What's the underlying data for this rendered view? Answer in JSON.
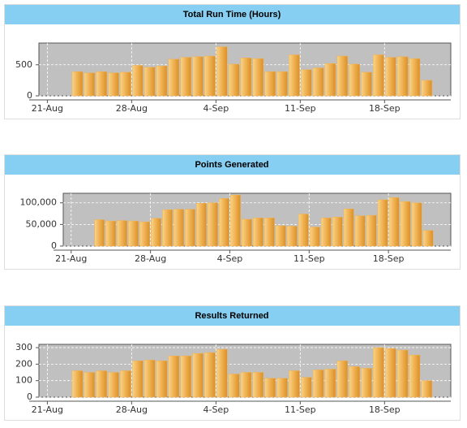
{
  "chart_data": [
    {
      "type": "bar",
      "title": "Total Run Time (Hours)",
      "color": "#f0b050",
      "grid": true,
      "x": [
        2,
        3,
        4,
        5,
        6,
        7,
        8,
        9,
        10,
        11,
        12,
        13,
        14,
        15,
        16,
        17,
        18,
        19,
        20,
        21,
        22,
        23,
        24,
        25,
        26,
        27,
        28,
        29,
        30,
        31
      ],
      "values": [
        390,
        370,
        390,
        370,
        380,
        490,
        460,
        480,
        590,
        620,
        630,
        640,
        790,
        510,
        610,
        600,
        390,
        390,
        660,
        420,
        450,
        520,
        640,
        510,
        380,
        660,
        620,
        630,
        600,
        250
      ],
      "xlim": [
        -0.7,
        33.5
      ],
      "xticks": [
        {
          "value": 0,
          "label": "21-Aug"
        },
        {
          "value": 7,
          "label": "28-Aug"
        },
        {
          "value": 14,
          "label": "4-Sep"
        },
        {
          "value": 21,
          "label": "11-Sep"
        },
        {
          "value": 28,
          "label": "18-Sep"
        }
      ],
      "ylim": [
        0,
        850
      ],
      "yticks": [
        0,
        500
      ]
    },
    {
      "type": "bar",
      "title": "Points Generated",
      "color": "#f0b050",
      "grid": true,
      "x": [
        2,
        3,
        4,
        5,
        6,
        7,
        8,
        9,
        10,
        11,
        12,
        13,
        14,
        15,
        16,
        17,
        18,
        19,
        20,
        21,
        22,
        23,
        24,
        25,
        26,
        27,
        28,
        29,
        30,
        31
      ],
      "values": [
        61000,
        58000,
        59000,
        58000,
        56000,
        64000,
        84000,
        85000,
        85000,
        99000,
        100000,
        110000,
        118000,
        62000,
        65000,
        65000,
        47000,
        46000,
        74000,
        44000,
        65000,
        67000,
        86000,
        70000,
        71000,
        107000,
        112000,
        103000,
        100000,
        36000
      ],
      "xlim": [
        -0.7,
        33.5
      ],
      "xticks": [
        {
          "value": 0,
          "label": "21-Aug"
        },
        {
          "value": 7,
          "label": "28-Aug"
        },
        {
          "value": 14,
          "label": "4-Sep"
        },
        {
          "value": 21,
          "label": "11-Sep"
        },
        {
          "value": 28,
          "label": "18-Sep"
        }
      ],
      "ylim": [
        0,
        122000
      ],
      "yticks": [
        0,
        {
          "value": 50000,
          "label": "50,000"
        },
        {
          "value": 100000,
          "label": "100,000"
        }
      ]
    },
    {
      "type": "bar",
      "title": "Results Returned",
      "color": "#f0b050",
      "grid": true,
      "x": [
        2,
        3,
        4,
        5,
        6,
        7,
        8,
        9,
        10,
        11,
        12,
        13,
        14,
        15,
        16,
        17,
        18,
        19,
        20,
        21,
        22,
        23,
        24,
        25,
        26,
        27,
        28,
        29,
        30,
        31
      ],
      "values": [
        160,
        150,
        160,
        150,
        160,
        220,
        225,
        220,
        250,
        250,
        265,
        270,
        290,
        140,
        150,
        150,
        115,
        115,
        160,
        120,
        165,
        170,
        220,
        185,
        175,
        300,
        295,
        285,
        255,
        100
      ],
      "xlim": [
        -0.7,
        33.5
      ],
      "xticks": [
        {
          "value": 0,
          "label": "21-Aug"
        },
        {
          "value": 7,
          "label": "28-Aug"
        },
        {
          "value": 14,
          "label": "4-Sep"
        },
        {
          "value": 21,
          "label": "11-Sep"
        },
        {
          "value": 28,
          "label": "18-Sep"
        }
      ],
      "ylim": [
        0,
        320
      ],
      "yticks": [
        0,
        100,
        200,
        300
      ]
    }
  ]
}
